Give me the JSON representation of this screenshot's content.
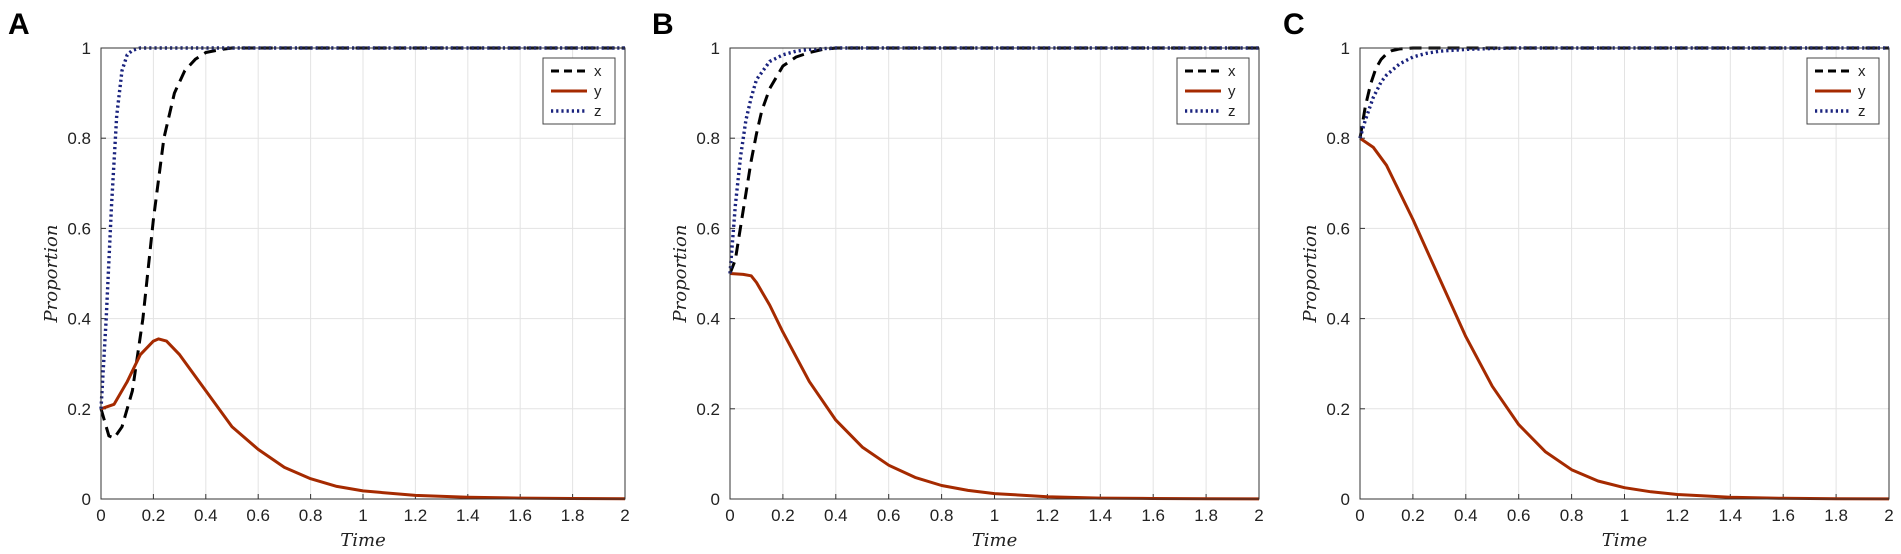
{
  "colors": {
    "x": "#000000",
    "y": "#a52a00",
    "z": "#1a237e",
    "grid": "#e3e3e3",
    "frame": "#333333"
  },
  "chart_data": [
    {
      "type": "line",
      "panel": "A",
      "xlabel": "Time",
      "ylabel": "Proportion",
      "xlim": [
        0,
        2
      ],
      "ylim": [
        0,
        1
      ],
      "xticks": [
        "0",
        "0.2",
        "0.4",
        "0.6",
        "0.8",
        "1",
        "1.2",
        "1.4",
        "1.6",
        "1.8",
        "2"
      ],
      "yticks": [
        "0",
        "0.2",
        "0.4",
        "0.6",
        "0.8",
        "1"
      ],
      "grid": true,
      "legend": "top-right",
      "series": [
        {
          "name": "x",
          "style": "dashed",
          "x": [
            0,
            0.03,
            0.05,
            0.08,
            0.12,
            0.16,
            0.2,
            0.24,
            0.28,
            0.32,
            0.36,
            0.4,
            0.46,
            0.5,
            0.6,
            0.8,
            1,
            1.5,
            2
          ],
          "y": [
            0.2,
            0.14,
            0.135,
            0.16,
            0.24,
            0.4,
            0.62,
            0.8,
            0.9,
            0.95,
            0.975,
            0.99,
            0.997,
            1,
            1,
            1,
            1,
            1,
            1
          ]
        },
        {
          "name": "y",
          "style": "solid",
          "x": [
            0,
            0.05,
            0.1,
            0.15,
            0.2,
            0.22,
            0.25,
            0.3,
            0.4,
            0.5,
            0.6,
            0.7,
            0.8,
            0.9,
            1,
            1.2,
            1.4,
            1.6,
            1.8,
            2
          ],
          "y": [
            0.2,
            0.21,
            0.26,
            0.32,
            0.35,
            0.355,
            0.35,
            0.32,
            0.24,
            0.16,
            0.11,
            0.07,
            0.045,
            0.028,
            0.018,
            0.008,
            0.004,
            0.002,
            0.001,
            0.0005
          ]
        },
        {
          "name": "z",
          "style": "dotted",
          "x": [
            0,
            0.02,
            0.04,
            0.06,
            0.08,
            0.1,
            0.12,
            0.15,
            0.2,
            0.3,
            0.5,
            1,
            1.5,
            2
          ],
          "y": [
            0.2,
            0.4,
            0.65,
            0.85,
            0.95,
            0.985,
            0.995,
            1,
            1,
            1,
            1,
            1,
            1,
            1
          ]
        }
      ]
    },
    {
      "type": "line",
      "panel": "B",
      "xlabel": "Time",
      "ylabel": "Proportion",
      "xlim": [
        0,
        2
      ],
      "ylim": [
        0,
        1
      ],
      "xticks": [
        "0",
        "0.2",
        "0.4",
        "0.6",
        "0.8",
        "1",
        "1.2",
        "1.4",
        "1.6",
        "1.8",
        "2"
      ],
      "yticks": [
        "0",
        "0.2",
        "0.4",
        "0.6",
        "0.8",
        "1"
      ],
      "grid": true,
      "legend": "top-right",
      "series": [
        {
          "name": "x",
          "style": "dashed",
          "x": [
            0,
            0.02,
            0.05,
            0.08,
            0.1,
            0.12,
            0.15,
            0.2,
            0.25,
            0.3,
            0.35,
            0.4,
            0.5,
            0.6,
            1,
            1.5,
            2
          ],
          "y": [
            0.5,
            0.53,
            0.64,
            0.75,
            0.81,
            0.86,
            0.91,
            0.96,
            0.98,
            0.99,
            0.997,
            1,
            1,
            1,
            1,
            1,
            1
          ]
        },
        {
          "name": "y",
          "style": "solid",
          "x": [
            0,
            0.05,
            0.08,
            0.1,
            0.15,
            0.2,
            0.3,
            0.4,
            0.5,
            0.6,
            0.7,
            0.8,
            0.9,
            1,
            1.2,
            1.4,
            1.6,
            1.8,
            2
          ],
          "y": [
            0.5,
            0.498,
            0.495,
            0.48,
            0.43,
            0.37,
            0.26,
            0.175,
            0.115,
            0.075,
            0.048,
            0.03,
            0.019,
            0.012,
            0.005,
            0.002,
            0.001,
            0.0005,
            0.0002
          ]
        },
        {
          "name": "z",
          "style": "dotted",
          "x": [
            0,
            0.02,
            0.04,
            0.06,
            0.08,
            0.1,
            0.15,
            0.2,
            0.25,
            0.3,
            0.4,
            0.5,
            1,
            1.5,
            2
          ],
          "y": [
            0.5,
            0.65,
            0.76,
            0.84,
            0.89,
            0.93,
            0.97,
            0.985,
            0.993,
            0.997,
            1,
            1,
            1,
            1,
            1
          ]
        }
      ]
    },
    {
      "type": "line",
      "panel": "C",
      "xlabel": "Time",
      "ylabel": "Proportion",
      "xlim": [
        0,
        2
      ],
      "ylim": [
        0,
        1
      ],
      "xticks": [
        "0",
        "0.2",
        "0.4",
        "0.6",
        "0.8",
        "1",
        "1.2",
        "1.4",
        "1.6",
        "1.8",
        "2"
      ],
      "yticks": [
        "0",
        "0.2",
        "0.4",
        "0.6",
        "0.8",
        "1"
      ],
      "grid": true,
      "legend": "top-right",
      "series": [
        {
          "name": "x",
          "style": "dashed",
          "x": [
            0,
            0.02,
            0.04,
            0.06,
            0.08,
            0.1,
            0.12,
            0.15,
            0.2,
            0.3,
            0.5,
            1,
            1.5,
            2
          ],
          "y": [
            0.8,
            0.87,
            0.92,
            0.955,
            0.975,
            0.987,
            0.994,
            0.998,
            1,
            1,
            1,
            1,
            1,
            1
          ]
        },
        {
          "name": "y",
          "style": "solid",
          "x": [
            0,
            0.05,
            0.1,
            0.2,
            0.3,
            0.4,
            0.5,
            0.6,
            0.7,
            0.8,
            0.9,
            1,
            1.1,
            1.2,
            1.4,
            1.6,
            1.8,
            2
          ],
          "y": [
            0.8,
            0.78,
            0.74,
            0.62,
            0.49,
            0.36,
            0.25,
            0.165,
            0.105,
            0.065,
            0.04,
            0.025,
            0.016,
            0.01,
            0.004,
            0.0015,
            0.0007,
            0.0003
          ]
        },
        {
          "name": "z",
          "style": "dotted",
          "x": [
            0,
            0.02,
            0.05,
            0.08,
            0.1,
            0.15,
            0.2,
            0.25,
            0.3,
            0.4,
            0.5,
            0.6,
            1,
            1.5,
            2
          ],
          "y": [
            0.8,
            0.84,
            0.89,
            0.925,
            0.94,
            0.965,
            0.98,
            0.988,
            0.993,
            0.997,
            0.999,
            1,
            1,
            1,
            1
          ]
        }
      ]
    }
  ]
}
